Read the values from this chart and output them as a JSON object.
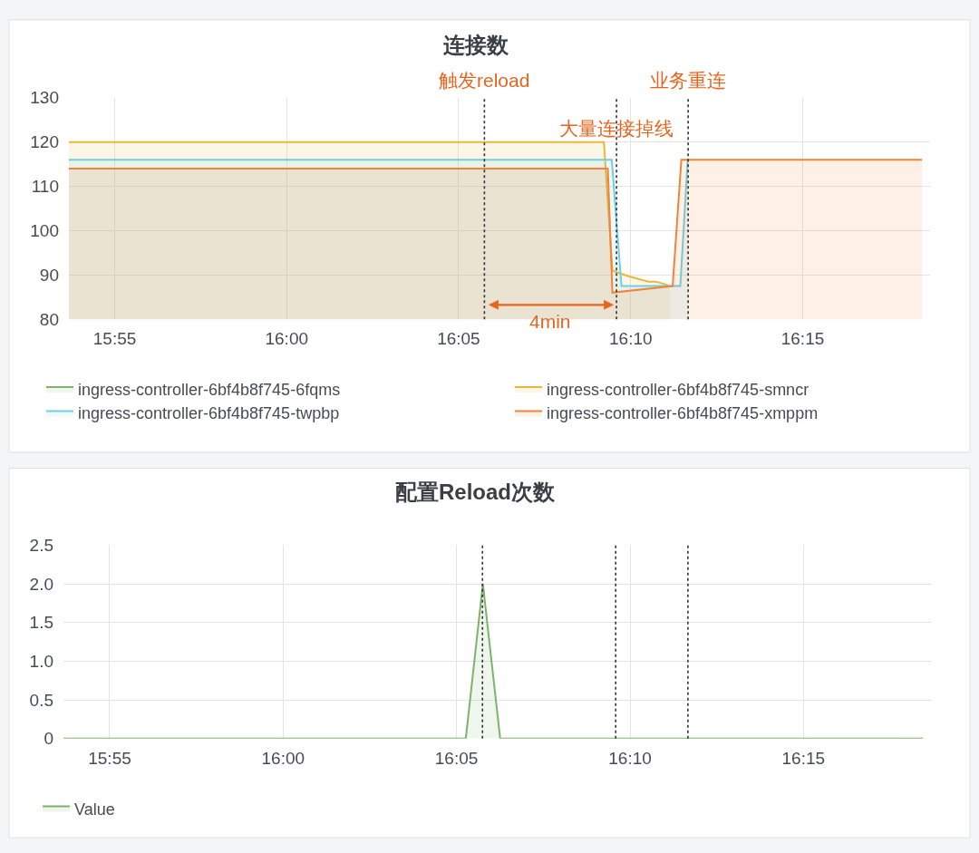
{
  "chart_data": [
    {
      "type": "area",
      "title": "连接数",
      "xlim": [
        15.8945,
        16.3117
      ],
      "xticks": [
        {
          "value": 15.9167,
          "label": "15:55"
        },
        {
          "value": 16.0,
          "label": "16:00"
        },
        {
          "value": 16.0833,
          "label": "16:05"
        },
        {
          "value": 16.1667,
          "label": "16:10"
        },
        {
          "value": 16.25,
          "label": "16:15"
        }
      ],
      "ylim": [
        80,
        130
      ],
      "yticks": [
        80,
        90,
        100,
        110,
        120,
        130
      ],
      "grid": true,
      "legend": "bottom",
      "series": [
        {
          "name": "ingress-controller-6bf4b8f745-6fqms",
          "color": "#7eb26d",
          "values": [
            null
          ]
        },
        {
          "name": "ingress-controller-6bf4b8f745-smncr",
          "color": "#eab839",
          "x": [
            15.8945,
            16.1537,
            16.1578,
            16.1637,
            16.1672,
            16.1753,
            16.1789,
            16.1826,
            16.1855
          ],
          "values": [
            120,
            120,
            91,
            90,
            89.5,
            88.5,
            88.5,
            88,
            87.5
          ]
        },
        {
          "name": "ingress-controller-6bf4b8f745-twpbp",
          "color": "#6ed0e0",
          "x": [
            15.8945,
            16.1575,
            16.1622,
            16.1907,
            16.1943
          ],
          "values": [
            116,
            116,
            87.5,
            87.5,
            116
          ]
        },
        {
          "name": "ingress-controller-6bf4b8f745-xmppm",
          "color": "#ef843c",
          "x": [
            15.8945,
            16.1556,
            16.1578,
            16.187,
            16.1912,
            16.3078
          ],
          "values": [
            114,
            114,
            86,
            87.5,
            116,
            116
          ]
        }
      ],
      "ref_lines": [
        {
          "axis": "x",
          "value": 16.0958,
          "label": "触发reload",
          "color": "#333333",
          "line_style": "dotted"
        },
        {
          "axis": "x",
          "value": 16.1598,
          "label": "大量连接掉线",
          "color": "#333333",
          "line_style": "dotted"
        },
        {
          "axis": "x",
          "value": 16.1945,
          "label": "业务重连",
          "color": "#333333",
          "line_style": "dotted"
        }
      ],
      "annotations": [
        "4min"
      ]
    },
    {
      "type": "area",
      "title": "配置Reload次数",
      "xlim": [
        15.8945,
        16.3117
      ],
      "xticks": [
        {
          "value": 15.9167,
          "label": "15:55"
        },
        {
          "value": 16.0,
          "label": "16:00"
        },
        {
          "value": 16.0833,
          "label": "16:05"
        },
        {
          "value": 16.1667,
          "label": "16:10"
        },
        {
          "value": 16.25,
          "label": "16:15"
        }
      ],
      "ylim": [
        0,
        2.5
      ],
      "yticks": [
        0,
        0.5,
        {
          "value": 1,
          "label": "1.0"
        },
        1.5,
        {
          "value": 2,
          "label": "2.0"
        },
        2.5
      ],
      "grid": true,
      "legend": "bottom",
      "series": [
        {
          "name": "Value",
          "color": "#7eb26d",
          "x": [
            15.8945,
            16.0878,
            16.096,
            16.1043,
            16.3075
          ],
          "values": [
            0,
            0,
            2,
            0,
            0
          ]
        }
      ],
      "ref_lines": [
        {
          "axis": "x",
          "value": 16.0958,
          "color": "#333333",
          "line_style": "dotted"
        },
        {
          "axis": "x",
          "value": 16.1598,
          "color": "#333333",
          "line_style": "dotted"
        },
        {
          "axis": "x",
          "value": 16.1945,
          "color": "#333333",
          "line_style": "dotted"
        }
      ]
    }
  ]
}
